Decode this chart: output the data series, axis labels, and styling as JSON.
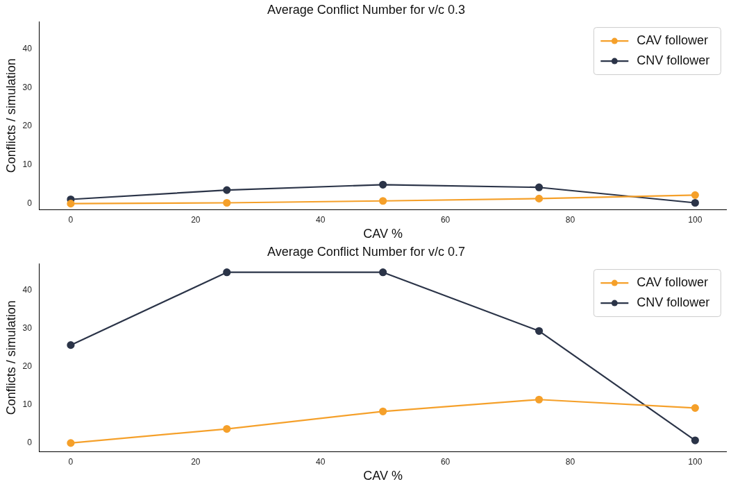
{
  "chart_data": [
    {
      "type": "line",
      "title": "Average Conflict Number for v/c 0.3",
      "xlabel": "CAV %",
      "ylabel": "Conflicts / simulation",
      "x": [
        0,
        25,
        50,
        75,
        100
      ],
      "series": [
        {
          "name": "CAV follower",
          "color": "#f5a02a",
          "values": [
            0,
            0.2,
            0.7,
            1.3,
            2.2
          ]
        },
        {
          "name": "CNV follower",
          "color": "#2b3448",
          "values": [
            1.1,
            3.5,
            4.9,
            4.2,
            0.2
          ]
        }
      ],
      "xlim": [
        -5,
        105
      ],
      "xticks": [
        0,
        20,
        40,
        60,
        80,
        100
      ],
      "ylim": [
        -1.5,
        47
      ],
      "yticks": [
        0,
        10,
        20,
        30,
        40
      ],
      "grid": false,
      "legend": "top right",
      "marker": "circle",
      "line_style": "solid"
    },
    {
      "type": "line",
      "title": "Average Conflict Number for v/c 0.7",
      "xlabel": "CAV %",
      "ylabel": "Conflicts / simulation",
      "x": [
        0,
        25,
        50,
        75,
        100
      ],
      "series": [
        {
          "name": "CAV follower",
          "color": "#f5a02a",
          "values": [
            0,
            3.7,
            8.3,
            11.4,
            9.2
          ]
        },
        {
          "name": "CNV follower",
          "color": "#2b3448",
          "values": [
            25.7,
            44.8,
            44.8,
            29.4,
            0.7
          ]
        }
      ],
      "xlim": [
        -5,
        105
      ],
      "xticks": [
        0,
        20,
        40,
        60,
        80,
        100
      ],
      "ylim": [
        -2.2,
        47
      ],
      "yticks": [
        0,
        10,
        20,
        30,
        40
      ],
      "grid": false,
      "legend": "top right",
      "marker": "circle",
      "line_style": "solid"
    }
  ]
}
